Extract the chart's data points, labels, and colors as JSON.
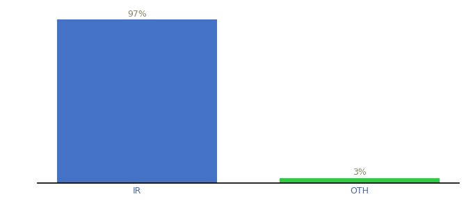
{
  "categories": [
    "IR",
    "OTH"
  ],
  "values": [
    97,
    3
  ],
  "bar_colors": [
    "#4472c4",
    "#2ecc40"
  ],
  "value_labels": [
    "97%",
    "3%"
  ],
  "ylim": [
    0,
    105
  ],
  "background_color": "#ffffff",
  "label_fontsize": 9,
  "label_color": "#888866",
  "tick_fontsize": 9,
  "tick_color": "#4466aa",
  "bar_width": 0.72
}
